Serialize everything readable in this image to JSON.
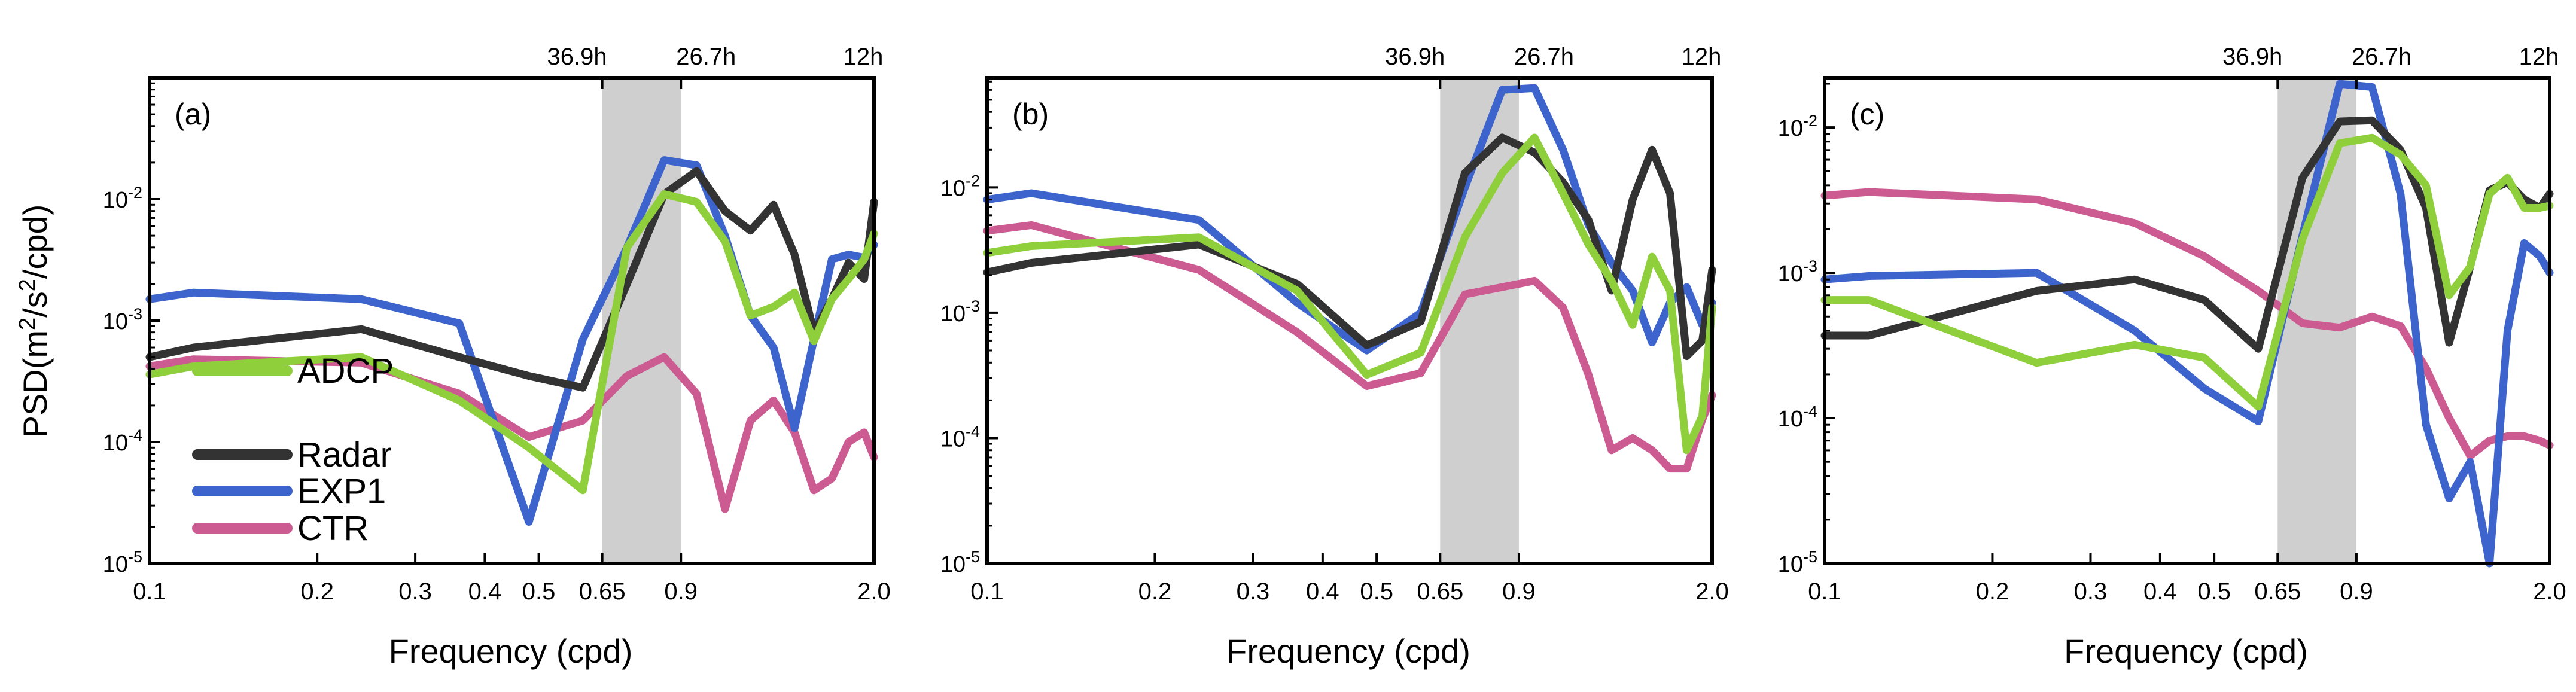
{
  "figure": {
    "ylabel_main": "PSD(m",
    "ylabel_sup1": "2",
    "ylabel_mid": "/s",
    "ylabel_sup2": "2",
    "ylabel_end": "/cpd)",
    "xlabel": "Frequency (cpd)"
  },
  "legend": [
    {
      "name": "ADCP",
      "color": "#8fcf3c"
    },
    {
      "name": "Radar",
      "color": "#333333"
    },
    {
      "name": "EXP1",
      "color": "#3d64cc"
    },
    {
      "name": "CTR",
      "color": "#cc5b92"
    }
  ],
  "chart_data": [
    {
      "type": "line",
      "panel": "(a)",
      "xscale": "log",
      "yscale": "log",
      "xlim": [
        0.1,
        2.0
      ],
      "ylim": [
        1e-05,
        0.1
      ],
      "xticks": [
        0.1,
        0.2,
        0.3,
        0.4,
        0.5,
        0.65,
        0.9,
        2.0
      ],
      "xtick_labels": [
        "0.1",
        "0.2",
        "0.3",
        "0.4",
        "0.5",
        "0.65",
        "0.9",
        "2.0"
      ],
      "top_ticks": [
        0.65,
        0.9,
        2.0
      ],
      "top_tick_labels": [
        "36.9h",
        "26.7h",
        "12h"
      ],
      "yticks": [
        1e-05,
        0.0001,
        0.001,
        0.01
      ],
      "ytick_exponents": [
        "-5",
        "-4",
        "-3",
        "-2"
      ],
      "shade": [
        0.65,
        0.9
      ],
      "series": [
        {
          "name": "CTR",
          "x": [
            0.1,
            0.12,
            0.24,
            0.36,
            0.48,
            0.6,
            0.72,
            0.84,
            0.96,
            1.08,
            1.2,
            1.32,
            1.44,
            1.56,
            1.68,
            1.8,
            1.92,
            2.0
          ],
          "y": [
            0.00042,
            0.00048,
            0.00045,
            0.00025,
            0.00011,
            0.00015,
            0.00035,
            0.0005,
            0.00025,
            2.8e-05,
            0.00015,
            0.00022,
            0.00012,
            4e-05,
            5e-05,
            0.0001,
            0.00012,
            7.5e-05
          ]
        },
        {
          "name": "EXP1",
          "x": [
            0.1,
            0.12,
            0.24,
            0.36,
            0.48,
            0.6,
            0.72,
            0.84,
            0.96,
            1.08,
            1.2,
            1.32,
            1.44,
            1.56,
            1.68,
            1.8,
            1.92,
            2.0
          ],
          "y": [
            0.0015,
            0.0017,
            0.0015,
            0.00095,
            2.2e-05,
            0.0007,
            0.004,
            0.021,
            0.019,
            0.005,
            0.0011,
            0.0006,
            0.00013,
            0.0007,
            0.0032,
            0.0035,
            0.0033,
            0.0042
          ]
        },
        {
          "name": "Radar",
          "x": [
            0.1,
            0.12,
            0.24,
            0.36,
            0.48,
            0.6,
            0.72,
            0.84,
            0.96,
            1.08,
            1.2,
            1.32,
            1.44,
            1.56,
            1.68,
            1.8,
            1.92,
            2.0
          ],
          "y": [
            0.0005,
            0.0006,
            0.00085,
            0.0005,
            0.00035,
            0.00028,
            0.002,
            0.011,
            0.017,
            0.008,
            0.0055,
            0.009,
            0.0035,
            0.0008,
            0.0015,
            0.003,
            0.0022,
            0.0095
          ]
        },
        {
          "name": "ADCP",
          "x": [
            0.1,
            0.12,
            0.24,
            0.36,
            0.48,
            0.6,
            0.72,
            0.84,
            0.96,
            1.08,
            1.2,
            1.32,
            1.44,
            1.56,
            1.68,
            1.8,
            1.92,
            2.0
          ],
          "y": [
            0.00036,
            0.00042,
            0.0005,
            0.00022,
            9e-05,
            4e-05,
            0.004,
            0.011,
            0.0095,
            0.0045,
            0.0011,
            0.0013,
            0.0017,
            0.00068,
            0.0015,
            0.0022,
            0.0032,
            0.0052
          ]
        }
      ]
    },
    {
      "type": "line",
      "panel": "(b)",
      "xscale": "log",
      "yscale": "log",
      "xlim": [
        0.1,
        2.0
      ],
      "ylim": [
        1e-05,
        0.075
      ],
      "xticks": [
        0.1,
        0.2,
        0.3,
        0.4,
        0.5,
        0.65,
        0.9,
        2.0
      ],
      "xtick_labels": [
        "0.1",
        "0.2",
        "0.3",
        "0.4",
        "0.5",
        "0.65",
        "0.9",
        "2.0"
      ],
      "top_ticks": [
        0.65,
        0.9,
        2.0
      ],
      "top_tick_labels": [
        "36.9h",
        "26.7h",
        "12h"
      ],
      "yticks": [
        1e-05,
        0.0001,
        0.001,
        0.01
      ],
      "ytick_exponents": [
        "-5",
        "-4",
        "-3",
        "-2"
      ],
      "shade": [
        0.65,
        0.9
      ],
      "series": [
        {
          "name": "CTR",
          "x": [
            0.1,
            0.12,
            0.24,
            0.36,
            0.48,
            0.6,
            0.72,
            0.84,
            0.96,
            1.08,
            1.2,
            1.32,
            1.44,
            1.56,
            1.68,
            1.8,
            1.92,
            2.0
          ],
          "y": [
            0.0045,
            0.005,
            0.0022,
            0.0007,
            0.00026,
            0.00033,
            0.0014,
            0.0016,
            0.0018,
            0.0011,
            0.00032,
            8e-05,
            0.0001,
            8e-05,
            5.7e-05,
            5.7e-05,
            0.00014,
            0.00022
          ]
        },
        {
          "name": "EXP1",
          "x": [
            0.1,
            0.12,
            0.24,
            0.36,
            0.48,
            0.6,
            0.72,
            0.84,
            0.96,
            1.08,
            1.2,
            1.32,
            1.44,
            1.56,
            1.68,
            1.8,
            1.92,
            2.0
          ],
          "y": [
            0.008,
            0.009,
            0.0055,
            0.0012,
            0.0005,
            0.001,
            0.01,
            0.06,
            0.062,
            0.02,
            0.005,
            0.0025,
            0.0015,
            0.00058,
            0.0012,
            0.0016,
            0.0008,
            0.0012
          ]
        },
        {
          "name": "Radar",
          "x": [
            0.1,
            0.12,
            0.24,
            0.36,
            0.48,
            0.6,
            0.72,
            0.84,
            0.96,
            1.08,
            1.2,
            1.32,
            1.44,
            1.56,
            1.68,
            1.8,
            1.92,
            2.0
          ],
          "y": [
            0.0021,
            0.0025,
            0.0035,
            0.0017,
            0.00055,
            0.00085,
            0.013,
            0.025,
            0.019,
            0.011,
            0.0055,
            0.0015,
            0.008,
            0.02,
            0.009,
            0.00045,
            0.0006,
            0.0022
          ]
        },
        {
          "name": "ADCP",
          "x": [
            0.1,
            0.12,
            0.24,
            0.36,
            0.48,
            0.6,
            0.72,
            0.84,
            0.96,
            1.08,
            1.2,
            1.32,
            1.44,
            1.56,
            1.68,
            1.8,
            1.92,
            2.0
          ],
          "y": [
            0.003,
            0.0034,
            0.004,
            0.0015,
            0.00032,
            0.00048,
            0.004,
            0.013,
            0.025,
            0.009,
            0.0035,
            0.0018,
            0.0008,
            0.0028,
            0.0015,
            8e-05,
            0.00015,
            0.0011
          ]
        }
      ]
    },
    {
      "type": "line",
      "panel": "(c)",
      "xscale": "log",
      "yscale": "log",
      "xlim": [
        0.1,
        2.0
      ],
      "ylim": [
        1e-05,
        0.022
      ],
      "xticks": [
        0.1,
        0.2,
        0.3,
        0.4,
        0.5,
        0.65,
        0.9,
        2.0
      ],
      "xtick_labels": [
        "0.1",
        "0.2",
        "0.3",
        "0.4",
        "0.5",
        "0.65",
        "0.9",
        "2.0"
      ],
      "top_ticks": [
        0.65,
        0.9,
        2.0
      ],
      "top_tick_labels": [
        "36.9h",
        "26.7h",
        "12h"
      ],
      "yticks": [
        1e-05,
        0.0001,
        0.001,
        0.01
      ],
      "ytick_exponents": [
        "-5",
        "-4",
        "-3",
        "-2"
      ],
      "shade": [
        0.65,
        0.9
      ],
      "series": [
        {
          "name": "CTR",
          "x": [
            0.1,
            0.12,
            0.24,
            0.36,
            0.48,
            0.6,
            0.72,
            0.84,
            0.96,
            1.08,
            1.2,
            1.32,
            1.44,
            1.56,
            1.68,
            1.8,
            1.92,
            2.0
          ],
          "y": [
            0.0034,
            0.0036,
            0.0032,
            0.0022,
            0.0013,
            0.00075,
            0.00045,
            0.00042,
            0.0005,
            0.00043,
            0.00022,
            0.0001,
            5.5e-05,
            7e-05,
            7.5e-05,
            7.5e-05,
            7e-05,
            6.5e-05
          ]
        },
        {
          "name": "EXP1",
          "x": [
            0.1,
            0.12,
            0.24,
            0.36,
            0.48,
            0.6,
            0.72,
            0.84,
            0.96,
            1.08,
            1.2,
            1.32,
            1.44,
            1.56,
            1.68,
            1.8,
            1.92,
            2.0
          ],
          "y": [
            0.0009,
            0.00095,
            0.001,
            0.0004,
            0.00016,
            9.5e-05,
            0.0018,
            0.02,
            0.019,
            0.0035,
            9e-05,
            2.8e-05,
            5e-05,
            1e-05,
            0.0004,
            0.0016,
            0.0013,
            0.001
          ]
        },
        {
          "name": "Radar",
          "x": [
            0.1,
            0.12,
            0.24,
            0.36,
            0.48,
            0.6,
            0.72,
            0.84,
            0.96,
            1.08,
            1.2,
            1.32,
            1.44,
            1.56,
            1.68,
            1.8,
            1.92,
            2.0
          ],
          "y": [
            0.00037,
            0.00037,
            0.00075,
            0.0009,
            0.00065,
            0.0003,
            0.0045,
            0.011,
            0.0112,
            0.007,
            0.0028,
            0.00033,
            0.0011,
            0.0037,
            0.0042,
            0.0032,
            0.0028,
            0.0035
          ]
        },
        {
          "name": "ADCP",
          "x": [
            0.1,
            0.12,
            0.24,
            0.36,
            0.48,
            0.6,
            0.72,
            0.84,
            0.96,
            1.08,
            1.2,
            1.32,
            1.44,
            1.56,
            1.68,
            1.8,
            1.92,
            2.0
          ],
          "y": [
            0.00065,
            0.00065,
            0.00024,
            0.00032,
            0.00026,
            0.00012,
            0.0017,
            0.0078,
            0.0085,
            0.0065,
            0.004,
            0.0007,
            0.0011,
            0.0035,
            0.0045,
            0.0028,
            0.0028,
            0.0029
          ]
        }
      ]
    }
  ]
}
